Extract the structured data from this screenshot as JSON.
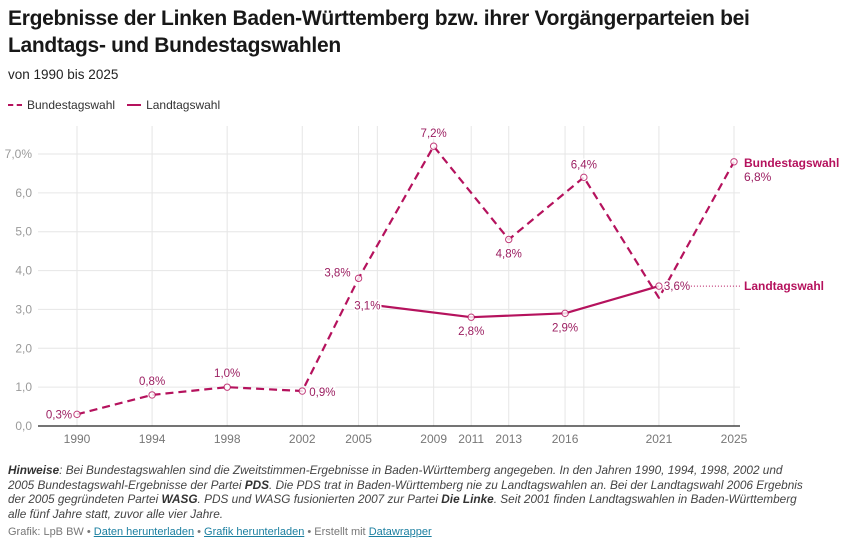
{
  "header": {
    "title": "Ergebnisse der Linken Baden-Württemberg bzw. ihrer Vorgängerparteien bei Landtags- und Bundestagswahlen",
    "subtitle": "von 1990 bis 2025"
  },
  "legend": [
    {
      "label": "Bundestagswahl",
      "style": "dashed"
    },
    {
      "label": "Landtagswahl",
      "style": "solid"
    }
  ],
  "chart_data": {
    "type": "line",
    "title": "Ergebnisse der Linken Baden-Württemberg bzw. ihrer Vorgängerparteien bei Landtags- und Bundestagswahlen",
    "subtitle": "von 1990 bis 2025",
    "xlabel": "",
    "ylabel": "",
    "xlim": [
      1990,
      2025
    ],
    "ylim": [
      0,
      7
    ],
    "x_ticks": [
      1990,
      1994,
      1998,
      2002,
      2005,
      2009,
      2011,
      2013,
      2016,
      2021,
      2025
    ],
    "y_ticks": [
      0,
      1,
      2,
      3,
      4,
      5,
      6,
      7
    ],
    "y_tick_labels": [
      "0,0",
      "1,0",
      "2,0",
      "3,0",
      "4,0",
      "5,0",
      "6,0",
      "7,0%"
    ],
    "grid": true,
    "legend_position": "top-left",
    "color": "#b5125d",
    "series": [
      {
        "name": "Bundestagswahl",
        "style": "dashed",
        "points": [
          {
            "x": 1990,
            "y": 0.3,
            "label": "0,3%"
          },
          {
            "x": 1994,
            "y": 0.8,
            "label": "0,8%"
          },
          {
            "x": 1998,
            "y": 1.0,
            "label": "1,0%"
          },
          {
            "x": 2002,
            "y": 0.9,
            "label": "0,9%"
          },
          {
            "x": 2005,
            "y": 3.8,
            "label": "3,8%"
          },
          {
            "x": 2009,
            "y": 7.2,
            "label": "7,2%"
          },
          {
            "x": 2013,
            "y": 4.8,
            "label": "4,8%"
          },
          {
            "x": 2017,
            "y": 6.4,
            "label": "6,4%"
          },
          {
            "x": 2021,
            "y": 3.3,
            "label": ""
          },
          {
            "x": 2025,
            "y": 6.8,
            "label": "6,8%"
          }
        ],
        "end_label": "Bundestagswahl"
      },
      {
        "name": "Landtagswahl",
        "style": "solid",
        "points": [
          {
            "x": 2006,
            "y": 3.1,
            "label": "3,1%"
          },
          {
            "x": 2011,
            "y": 2.8,
            "label": "2,8%"
          },
          {
            "x": 2016,
            "y": 2.9,
            "label": "2,9%"
          },
          {
            "x": 2021,
            "y": 3.6,
            "label": "3,6%"
          }
        ],
        "end_label": "Landtagswahl"
      }
    ]
  },
  "notes": {
    "lead": "Hinweise",
    "parts": [
      {
        "t": ": Bei Bundestagswahlen sind die Zweitstimmen-Ergebnisse in Baden-Württemberg angegeben. In den Jahren 1990, 1994, 1998, 2002 und 2005 Bundestagswahl-Ergebnisse der Partei ",
        "b": false
      },
      {
        "t": "PDS",
        "b": true
      },
      {
        "t": ". Die PDS trat in Baden-Württemberg nie zu Landtagswahlen an. Bei der Landtagswahl 2006 Ergebnis der 2005 gegründeten Partei ",
        "b": false
      },
      {
        "t": "WASG",
        "b": true
      },
      {
        "t": ". PDS und WASG fusionierten 2007 zur Partei ",
        "b": false
      },
      {
        "t": "Die Linke",
        "b": true
      },
      {
        "t": ". Seit 2001 finden Landtagswahlen in Baden-Württemberg alle fünf Jahre statt, zuvor alle vier Jahre.",
        "b": false
      }
    ]
  },
  "footer": {
    "source": "Grafik: LpB BW",
    "sep": " • ",
    "download_data": "Daten herunterladen",
    "download_chart": "Grafik herunterladen",
    "created_with": "Erstellt mit",
    "tool": "Datawrapper"
  }
}
